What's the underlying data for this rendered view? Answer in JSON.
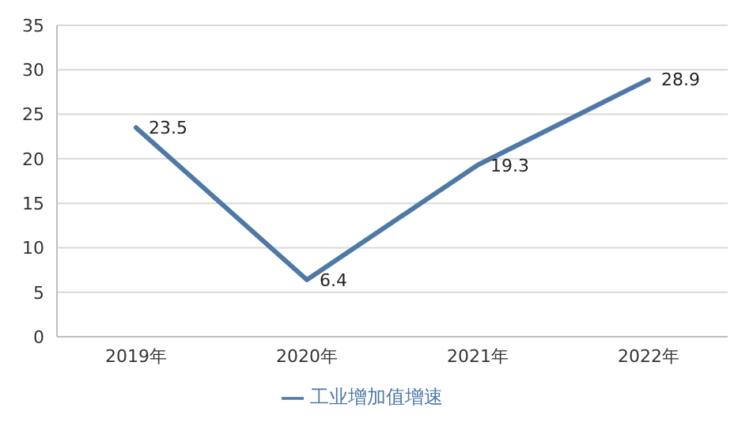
{
  "chart_data": {
    "type": "line",
    "categories": [
      "2019年",
      "2020年",
      "2021年",
      "2022年"
    ],
    "series": [
      {
        "name": "工业增加值增速",
        "color": "#4e79a7",
        "values": [
          23.5,
          6.4,
          19.3,
          28.9
        ]
      }
    ],
    "ylim": [
      0,
      35
    ],
    "yticks": [
      0,
      5,
      10,
      15,
      20,
      25,
      30,
      35
    ],
    "grid": "y",
    "legend": "bottom",
    "data_labels": true,
    "marker": "none",
    "line_style": "solid"
  }
}
